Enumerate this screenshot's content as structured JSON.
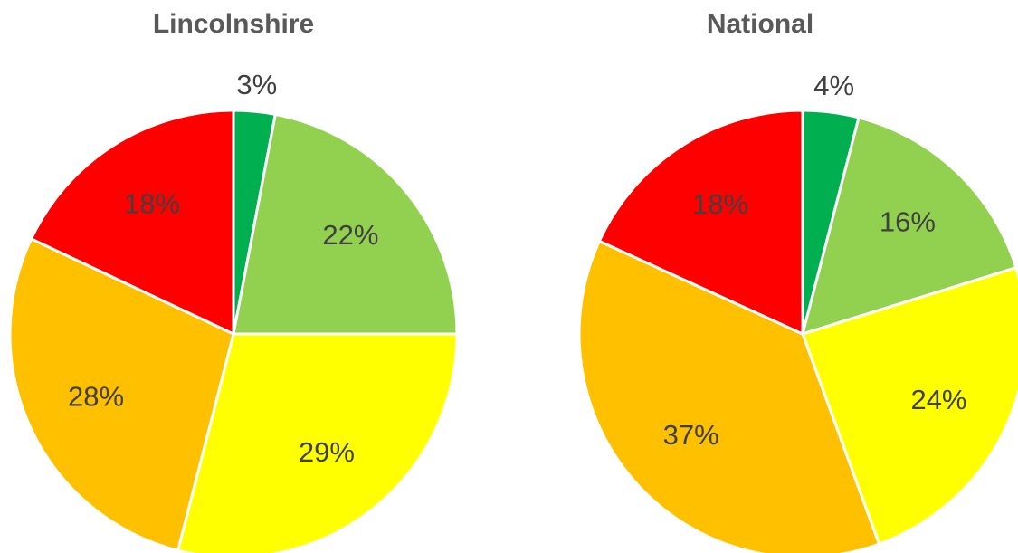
{
  "chart_data": [
    {
      "type": "pie",
      "title": "Lincolnshire",
      "values": [
        3,
        22,
        29,
        28,
        18
      ],
      "value_labels": [
        "3%",
        "22%",
        "29%",
        "28%",
        "18%"
      ],
      "colors": [
        "#00b050",
        "#92d050",
        "#ffff00",
        "#ffc000",
        "#ff0000"
      ]
    },
    {
      "type": "pie",
      "title": "National",
      "values": [
        4,
        16,
        24,
        37,
        18
      ],
      "value_labels": [
        "4%",
        "16%",
        "24%",
        "37%",
        "18%"
      ],
      "colors": [
        "#00b050",
        "#92d050",
        "#ffff00",
        "#ffc000",
        "#ff0000"
      ]
    }
  ]
}
